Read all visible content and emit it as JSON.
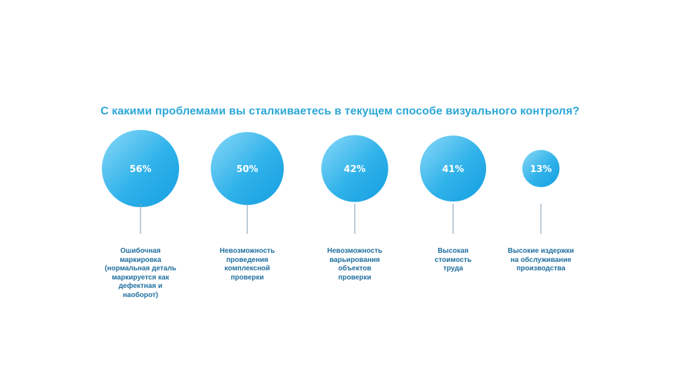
{
  "title": "С какими проблемами вы сталкиваетесь в текущем способе визуального контроля?",
  "colors": {
    "accent": "#2ba7d8",
    "bubble_light": "#6fd0f5",
    "bubble_dark": "#1aa3e0",
    "label_text": "#1f6f9e"
  },
  "chart_data": {
    "type": "bubble",
    "title": "С какими проблемами вы сталкиваетесь в текущем способе визуального контроля?",
    "categories": [
      "Ошибочная\nмаркировка\n(нормальная деталь\nмаркируется как\nдефектная и\nнаоборот)",
      "Невозможность\nпроведения\nкомплексной\nпроверки",
      "Невозможность\nварьирования\nобъектов\nпроверки",
      "Высокая\nстоимость\nтруда",
      "Высокие издержки\nна обслуживание\nпроизводства"
    ],
    "values": [
      56,
      50,
      42,
      41,
      13
    ],
    "value_labels": [
      "56%",
      "50%",
      "42%",
      "41%",
      "13%"
    ]
  }
}
